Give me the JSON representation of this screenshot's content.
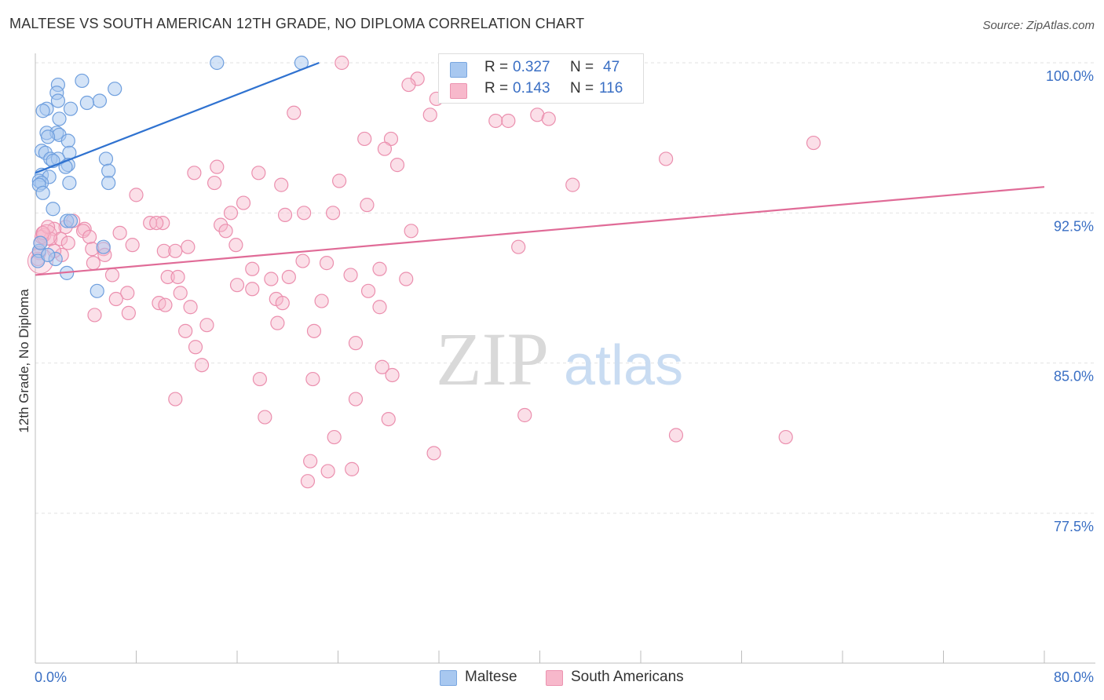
{
  "title": "MALTESE VS SOUTH AMERICAN 12TH GRADE, NO DIPLOMA CORRELATION CHART",
  "source": "Source: ZipAtlas.com",
  "watermark": {
    "zip": "ZIP",
    "atlas": "atlas"
  },
  "legend": {
    "maltese": {
      "r_label": "R = ",
      "r_value": "0.327",
      "n_label": "N = ",
      "n_value": "47"
    },
    "south_american": {
      "r_label": "R = ",
      "r_value": "0.143",
      "n_label": "N = ",
      "n_value": "116"
    }
  },
  "bottom_legend": {
    "maltese": "Maltese",
    "south_american": "South Americans"
  },
  "chart_data": {
    "type": "scatter",
    "title": "MALTESE VS SOUTH AMERICAN 12TH GRADE, NO DIPLOMA CORRELATION CHART",
    "xlabel": "",
    "ylabel": "12th Grade, No Diploma",
    "xlim": [
      0,
      80
    ],
    "ylim": [
      70,
      100
    ],
    "x_tick_labels": [
      "0.0%",
      "80.0%"
    ],
    "y_ticks": [
      100,
      92.5,
      85,
      77.5
    ],
    "y_tick_labels": [
      "100.0%",
      "92.5%",
      "85.0%",
      "77.5%"
    ],
    "colors": {
      "maltese": "#a8c8f0",
      "maltese_line": "#2f72d0",
      "south_american": "#f7b8cb",
      "south_american_line": "#e06b97",
      "tick_text": "#3a6fc4"
    },
    "series": [
      {
        "name": "Maltese",
        "trend": {
          "x": [
            0,
            22.5
          ],
          "y": [
            94.5,
            100
          ]
        },
        "points": [
          [
            14.4,
            100
          ],
          [
            21.1,
            100
          ],
          [
            3.7,
            99.1
          ],
          [
            1.8,
            98.9
          ],
          [
            6.3,
            98.7
          ],
          [
            1.7,
            98.5
          ],
          [
            1.8,
            98.1
          ],
          [
            5.1,
            98.1
          ],
          [
            4.1,
            98.0
          ],
          [
            2.8,
            97.7
          ],
          [
            0.9,
            97.7
          ],
          [
            0.6,
            97.6
          ],
          [
            1.9,
            97.2
          ],
          [
            0.9,
            96.5
          ],
          [
            1.7,
            96.5
          ],
          [
            1.9,
            96.4
          ],
          [
            1.0,
            96.3
          ],
          [
            2.6,
            96.1
          ],
          [
            0.5,
            95.6
          ],
          [
            2.7,
            95.5
          ],
          [
            0.8,
            95.5
          ],
          [
            5.6,
            95.2
          ],
          [
            1.2,
            95.2
          ],
          [
            1.8,
            95.2
          ],
          [
            1.4,
            95.1
          ],
          [
            2.6,
            94.9
          ],
          [
            2.4,
            94.8
          ],
          [
            5.8,
            94.6
          ],
          [
            0.5,
            94.4
          ],
          [
            1.1,
            94.3
          ],
          [
            0.3,
            94.1
          ],
          [
            0.5,
            94.0
          ],
          [
            5.8,
            94.0
          ],
          [
            2.7,
            94.0
          ],
          [
            0.3,
            93.9
          ],
          [
            0.6,
            93.5
          ],
          [
            1.4,
            92.7
          ],
          [
            2.5,
            92.1
          ],
          [
            2.8,
            92.1
          ],
          [
            0.3,
            90.6
          ],
          [
            5.4,
            90.8
          ],
          [
            1.6,
            90.2
          ],
          [
            2.5,
            89.5
          ],
          [
            4.9,
            88.6
          ],
          [
            0.2,
            90.1
          ],
          [
            0.4,
            91.0
          ],
          [
            1.0,
            90.4
          ]
        ]
      },
      {
        "name": "South Americans",
        "trend": {
          "x": [
            0,
            80
          ],
          "y": [
            89.4,
            93.8
          ]
        },
        "points": [
          [
            24.3,
            100
          ],
          [
            32.6,
            100
          ],
          [
            30.3,
            99.2
          ],
          [
            29.6,
            98.9
          ],
          [
            31.8,
            98.2
          ],
          [
            20.5,
            97.5
          ],
          [
            31.3,
            97.4
          ],
          [
            39.8,
            97.4
          ],
          [
            40.7,
            97.2
          ],
          [
            36.5,
            97.1
          ],
          [
            37.5,
            97.1
          ],
          [
            26.1,
            96.2
          ],
          [
            28.2,
            96.2
          ],
          [
            61.7,
            96.0
          ],
          [
            27.7,
            95.7
          ],
          [
            50.0,
            95.2
          ],
          [
            28.7,
            94.9
          ],
          [
            14.4,
            94.8
          ],
          [
            12.6,
            94.5
          ],
          [
            17.7,
            94.5
          ],
          [
            24.1,
            94.1
          ],
          [
            14.2,
            94.0
          ],
          [
            19.5,
            93.9
          ],
          [
            42.6,
            93.9
          ],
          [
            8.0,
            93.4
          ],
          [
            16.5,
            93.0
          ],
          [
            26.3,
            92.9
          ],
          [
            15.5,
            92.5
          ],
          [
            21.3,
            92.5
          ],
          [
            23.6,
            92.5
          ],
          [
            19.8,
            92.4
          ],
          [
            3.0,
            92.1
          ],
          [
            10.1,
            92.0
          ],
          [
            9.1,
            92.0
          ],
          [
            9.6,
            92.0
          ],
          [
            14.7,
            91.9
          ],
          [
            2.4,
            91.8
          ],
          [
            3.9,
            91.7
          ],
          [
            1.5,
            91.7
          ],
          [
            3.8,
            91.6
          ],
          [
            15.1,
            91.6
          ],
          [
            29.8,
            91.6
          ],
          [
            6.7,
            91.5
          ],
          [
            4.3,
            91.3
          ],
          [
            0.7,
            91.4
          ],
          [
            1.2,
            91.2
          ],
          [
            0.4,
            91.0
          ],
          [
            15.9,
            90.9
          ],
          [
            7.7,
            90.9
          ],
          [
            12.1,
            90.8
          ],
          [
            5.4,
            90.7
          ],
          [
            4.5,
            90.7
          ],
          [
            10.2,
            90.6
          ],
          [
            11.1,
            90.6
          ],
          [
            0.3,
            90.5
          ],
          [
            2.1,
            90.4
          ],
          [
            5.5,
            90.4
          ],
          [
            38.3,
            90.8
          ],
          [
            4.6,
            90.0
          ],
          [
            21.2,
            90.1
          ],
          [
            23.1,
            90.0
          ],
          [
            17.2,
            89.7
          ],
          [
            27.3,
            89.7
          ],
          [
            6.1,
            89.4
          ],
          [
            25.0,
            89.4
          ],
          [
            10.5,
            89.3
          ],
          [
            11.3,
            89.3
          ],
          [
            20.1,
            89.3
          ],
          [
            18.7,
            89.2
          ],
          [
            29.4,
            89.2
          ],
          [
            16.0,
            88.9
          ],
          [
            17.2,
            88.7
          ],
          [
            26.4,
            88.6
          ],
          [
            11.5,
            88.5
          ],
          [
            7.3,
            88.5
          ],
          [
            6.4,
            88.2
          ],
          [
            19.1,
            88.2
          ],
          [
            22.7,
            88.1
          ],
          [
            9.8,
            88.0
          ],
          [
            19.6,
            88.0
          ],
          [
            10.3,
            87.9
          ],
          [
            12.3,
            87.8
          ],
          [
            27.3,
            87.8
          ],
          [
            7.4,
            87.5
          ],
          [
            4.7,
            87.4
          ],
          [
            19.2,
            87.0
          ],
          [
            13.6,
            86.9
          ],
          [
            11.9,
            86.6
          ],
          [
            22.1,
            86.6
          ],
          [
            25.4,
            86.0
          ],
          [
            12.7,
            85.8
          ],
          [
            13.2,
            84.9
          ],
          [
            27.5,
            84.8
          ],
          [
            28.3,
            84.4
          ],
          [
            17.8,
            84.2
          ],
          [
            22.0,
            84.2
          ],
          [
            11.1,
            83.2
          ],
          [
            25.4,
            83.2
          ],
          [
            38.8,
            82.4
          ],
          [
            18.2,
            82.3
          ],
          [
            28.0,
            82.2
          ],
          [
            50.8,
            81.4
          ],
          [
            59.5,
            81.3
          ],
          [
            23.7,
            81.3
          ],
          [
            31.6,
            80.5
          ],
          [
            21.8,
            80.1
          ],
          [
            25.1,
            79.7
          ],
          [
            23.2,
            79.6
          ],
          [
            21.6,
            79.1
          ],
          [
            0.5,
            91.3
          ],
          [
            1.0,
            91.8
          ],
          [
            2.0,
            91.2
          ],
          [
            1.5,
            90.6
          ],
          [
            0.2,
            90.2
          ],
          [
            0.6,
            91.5
          ],
          [
            2.6,
            91.0
          ]
        ]
      }
    ]
  }
}
